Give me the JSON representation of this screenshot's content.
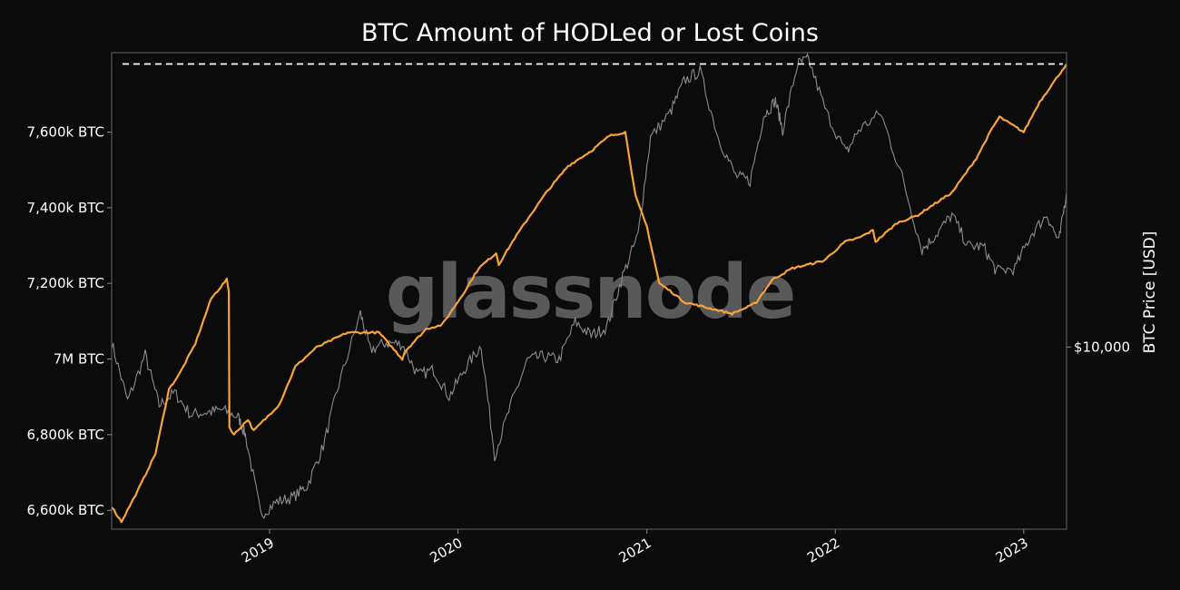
{
  "chart_data": {
    "type": "line",
    "title": "BTC Amount of HODLed or Lost Coins",
    "watermark": "glassnode",
    "xlabel": "",
    "ylabel_left": "",
    "ylabel_right": "BTC Price [USD]",
    "x_range": [
      "2018-03-01",
      "2023-03-25"
    ],
    "y_range_left": [
      6550,
      7810
    ],
    "x_ticks": [
      "2019",
      "2020",
      "2021",
      "2022",
      "2023"
    ],
    "x_tick_values": [
      "2019-01-01",
      "2020-01-01",
      "2021-01-01",
      "2022-01-01",
      "2023-01-01"
    ],
    "y_ticks_left": [
      {
        "value": 6600,
        "label": "6,600k BTC"
      },
      {
        "value": 6800,
        "label": "6,800k BTC"
      },
      {
        "value": 7000,
        "label": "7M BTC"
      },
      {
        "value": 7200,
        "label": "7,200k BTC"
      },
      {
        "value": 7400,
        "label": "7,400k BTC"
      },
      {
        "value": 7600,
        "label": "7,600k BTC"
      }
    ],
    "y_ticks_right": [
      {
        "value": 10000,
        "label": "$10,000"
      }
    ],
    "y_range_right": [
      3000,
      70000
    ],
    "y_scale_right": "log",
    "reference_line": {
      "value": 7780,
      "style": "dashed",
      "color": "#ffffff"
    },
    "colors": {
      "hodl": "#f7a33a",
      "price": "#8c8c8c",
      "background": "#0b0b0b",
      "frame": "#666666"
    },
    "series": [
      {
        "key": "hodl",
        "axis": "left",
        "x": [
          "2018-03-01",
          "2018-03-10",
          "2018-03-20",
          "2018-04-20",
          "2018-05-25",
          "2018-06-20",
          "2018-07-10",
          "2018-08-10",
          "2018-09-10",
          "2018-10-10",
          "2018-10-14",
          "2018-10-15",
          "2018-10-24",
          "2018-11-20",
          "2018-12-01",
          "2019-01-20",
          "2019-02-20",
          "2019-04-01",
          "2019-06-01",
          "2019-08-01",
          "2019-09-15",
          "2019-09-20",
          "2019-11-01",
          "2019-12-01",
          "2020-01-10",
          "2020-02-10",
          "2020-03-15",
          "2020-03-20",
          "2020-04-20",
          "2020-05-20",
          "2020-06-20",
          "2020-08-01",
          "2020-09-15",
          "2020-10-20",
          "2020-11-20",
          "2020-11-25",
          "2020-12-10",
          "2021-01-01",
          "2021-01-25",
          "2021-02-15",
          "2021-03-15",
          "2021-04-15",
          "2021-05-15",
          "2021-06-15",
          "2021-07-20",
          "2021-08-01",
          "2021-09-01",
          "2021-10-10",
          "2021-11-10",
          "2021-12-10",
          "2022-01-20",
          "2022-02-15",
          "2022-03-15",
          "2022-03-20",
          "2022-05-01",
          "2022-06-10",
          "2022-07-01",
          "2022-08-15",
          "2022-10-01",
          "2022-11-01",
          "2022-11-15",
          "2023-01-01",
          "2023-02-01",
          "2023-03-25"
        ],
        "values": [
          6610,
          6590,
          6570,
          6650,
          6750,
          6920,
          6960,
          7040,
          7160,
          7210,
          7180,
          6820,
          6800,
          6840,
          6810,
          6880,
          6980,
          7030,
          7070,
          7070,
          7000,
          7020,
          7080,
          7090,
          7170,
          7240,
          7280,
          7250,
          7320,
          7380,
          7440,
          7510,
          7550,
          7590,
          7600,
          7560,
          7430,
          7350,
          7200,
          7180,
          7150,
          7140,
          7130,
          7120,
          7140,
          7150,
          7210,
          7240,
          7250,
          7260,
          7310,
          7320,
          7340,
          7310,
          7360,
          7380,
          7400,
          7440,
          7530,
          7610,
          7640,
          7600,
          7680,
          7780
        ]
      },
      {
        "key": "price",
        "axis": "right",
        "x": [
          "2018-03-01",
          "2018-04-01",
          "2018-05-05",
          "2018-06-01",
          "2018-07-01",
          "2018-08-01",
          "2018-09-01",
          "2018-10-01",
          "2018-11-01",
          "2018-11-15",
          "2018-12-15",
          "2019-01-15",
          "2019-02-15",
          "2019-03-15",
          "2019-04-15",
          "2019-05-15",
          "2019-06-26",
          "2019-07-15",
          "2019-08-15",
          "2019-09-15",
          "2019-10-15",
          "2019-11-15",
          "2019-12-15",
          "2020-01-15",
          "2020-02-15",
          "2020-03-12",
          "2020-04-15",
          "2020-05-15",
          "2020-06-15",
          "2020-07-15",
          "2020-08-15",
          "2020-09-15",
          "2020-10-15",
          "2020-11-15",
          "2020-12-15",
          "2021-01-08",
          "2021-02-15",
          "2021-03-14",
          "2021-04-14",
          "2021-05-19",
          "2021-06-22",
          "2021-07-20",
          "2021-08-15",
          "2021-09-07",
          "2021-09-21",
          "2021-10-20",
          "2021-11-10",
          "2021-12-15",
          "2022-01-22",
          "2022-02-15",
          "2022-03-30",
          "2022-05-10",
          "2022-06-18",
          "2022-07-15",
          "2022-08-15",
          "2022-09-15",
          "2022-10-15",
          "2022-11-09",
          "2022-12-15",
          "2023-01-15",
          "2023-02-15",
          "2023-03-10",
          "2023-03-25"
        ],
        "values": [
          10300,
          7000,
          9500,
          6800,
          7400,
          6400,
          6500,
          6600,
          6300,
          5600,
          3300,
          3600,
          3700,
          4000,
          5200,
          7800,
          12500,
          9800,
          10300,
          10200,
          8300,
          8600,
          7200,
          8700,
          10100,
          4900,
          7000,
          9200,
          9400,
          9200,
          11800,
          10800,
          11400,
          16000,
          21000,
          40000,
          47000,
          58000,
          62000,
          40000,
          31000,
          30000,
          46000,
          51000,
          42000,
          65000,
          67000,
          47000,
          36000,
          42000,
          47000,
          31000,
          19000,
          21000,
          24000,
          19500,
          19400,
          16500,
          16800,
          21000,
          24000,
          20000,
          27800
        ]
      }
    ]
  }
}
